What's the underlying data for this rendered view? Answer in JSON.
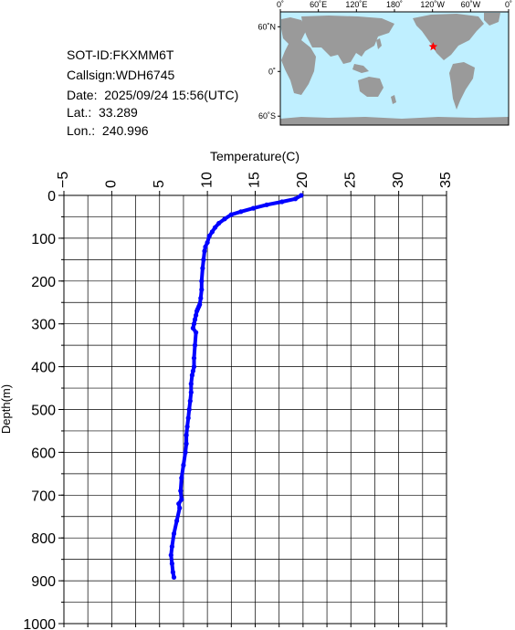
{
  "info": {
    "sot_id": "SOT-ID:FKXMM6T",
    "callsign": "Callsign:WDH6745",
    "date": "Date:  2025/09/24 15:56(UTC)",
    "lat": "Lat.:  33.289",
    "lon": "Lon.:  240.996"
  },
  "map": {
    "lon_labels": [
      "0˚",
      "60˚E",
      "120˚E",
      "180˚",
      "120˚W",
      "60˚W",
      "0˚"
    ],
    "lat_labels": [
      "60˚N",
      "0˚",
      "60˚S"
    ],
    "colors": {
      "ocean": "#bfefff",
      "land": "#9a9a9a",
      "marker": "#ff0000"
    },
    "marker": {
      "lat": 33.289,
      "lon": 240.996
    }
  },
  "chart_data": {
    "type": "line",
    "xlabel": "Temperature(C)",
    "ylabel": "Depth(m)",
    "xlim": [
      -5,
      35
    ],
    "ylim": [
      1000,
      0
    ],
    "x_ticks": [
      "−5",
      "0",
      "5",
      "10",
      "15",
      "20",
      "25",
      "30",
      "35"
    ],
    "y_ticks": [
      "0",
      "100",
      "200",
      "300",
      "400",
      "500",
      "600",
      "700",
      "800",
      "900",
      "1000"
    ],
    "grid": true,
    "line_color": "#0000ff",
    "series": [
      {
        "x": [
          19.8,
          19.2,
          17.8,
          16.2,
          14.8,
          13.5,
          12.5,
          11.8,
          11.2,
          10.8,
          10.5,
          10.2,
          10.0,
          9.8,
          9.7,
          9.6,
          9.5,
          9.4,
          9.4,
          9.3,
          9.2,
          9.1,
          9.0,
          8.9,
          8.8,
          8.7,
          8.6,
          8.5,
          8.8,
          8.7,
          8.6,
          8.6,
          8.5,
          8.4,
          8.3,
          8.3,
          8.2,
          8.1,
          8.0,
          7.9,
          7.8,
          7.8,
          7.7,
          7.5,
          7.3,
          7.2,
          7.3,
          7.0,
          7.1,
          6.8,
          6.5,
          6.3,
          6.2,
          6.3,
          6.4,
          6.5
        ],
        "y": [
          0,
          8,
          15,
          22,
          30,
          38,
          45,
          55,
          65,
          75,
          85,
          95,
          110,
          120,
          130,
          150,
          170,
          200,
          220,
          240,
          255,
          260,
          265,
          270,
          280,
          290,
          300,
          310,
          320,
          350,
          380,
          400,
          410,
          420,
          440,
          460,
          480,
          500,
          520,
          540,
          560,
          580,
          600,
          630,
          660,
          690,
          710,
          720,
          730,
          760,
          790,
          820,
          840,
          860,
          880,
          892
        ]
      }
    ]
  }
}
